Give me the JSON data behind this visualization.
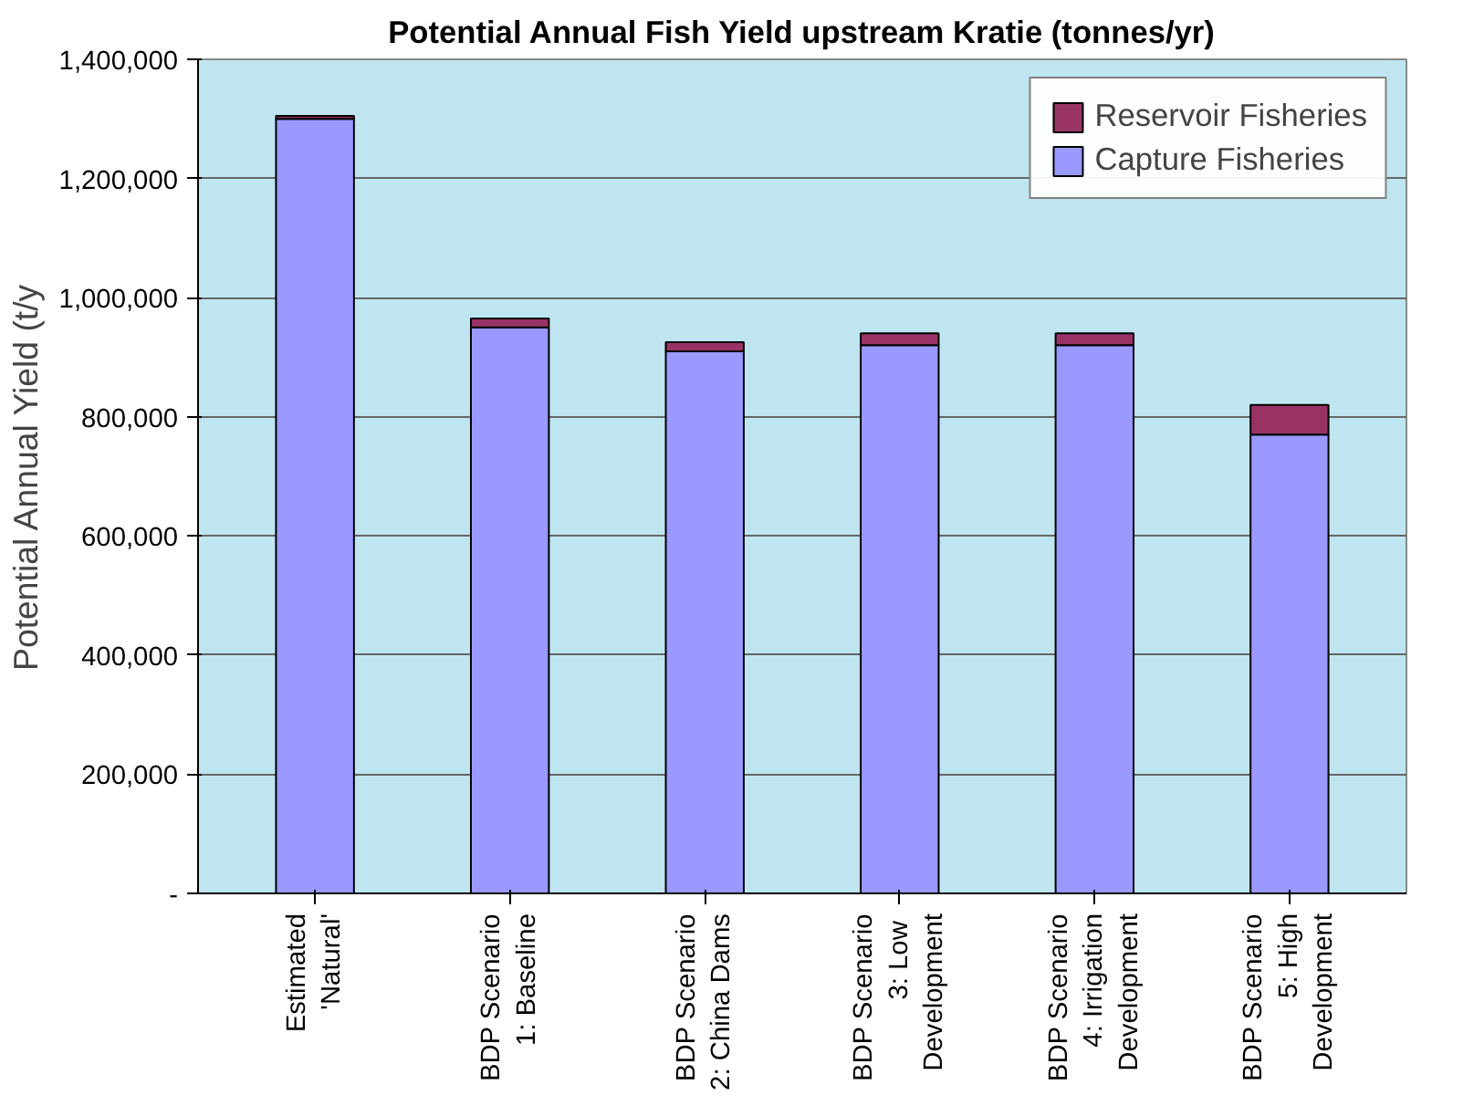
{
  "chart_data": {
    "type": "bar",
    "stacked": true,
    "title": "Potential Annual Fish Yield upstream Kratie (tonnes/yr)",
    "ylabel": "Potential Annual Yield (t/y",
    "categories": [
      "Estimated\n'Natural'",
      "BDP Scenario\n1: Baseline",
      "BDP Scenario\n2: China Dams",
      "BDP Scenario\n3:  Low\nDevelopment",
      "BDP Scenario\n4: Irrigation\nDevelopment",
      "BDP Scenario\n5: High\nDevelopment"
    ],
    "series": [
      {
        "name": "Capture Fisheries",
        "color": "#9999ff",
        "values": [
          1300000,
          950000,
          910000,
          920000,
          920000,
          770000
        ]
      },
      {
        "name": "Reservoir Fisheries",
        "color": "#993366",
        "values": [
          5000,
          15000,
          15000,
          20000,
          20000,
          50000
        ]
      }
    ],
    "ylim": [
      0,
      1400000
    ],
    "yticks": [
      {
        "value": 0,
        "label": "-"
      },
      {
        "value": 200000,
        "label": "200,000"
      },
      {
        "value": 400000,
        "label": "400,000"
      },
      {
        "value": 600000,
        "label": "600,000"
      },
      {
        "value": 800000,
        "label": "800,000"
      },
      {
        "value": 1000000,
        "label": "1,000,000"
      },
      {
        "value": 1200000,
        "label": "1,200,000"
      },
      {
        "value": 1400000,
        "label": "1,400,000"
      }
    ],
    "grid": "y",
    "legend": "top right"
  }
}
